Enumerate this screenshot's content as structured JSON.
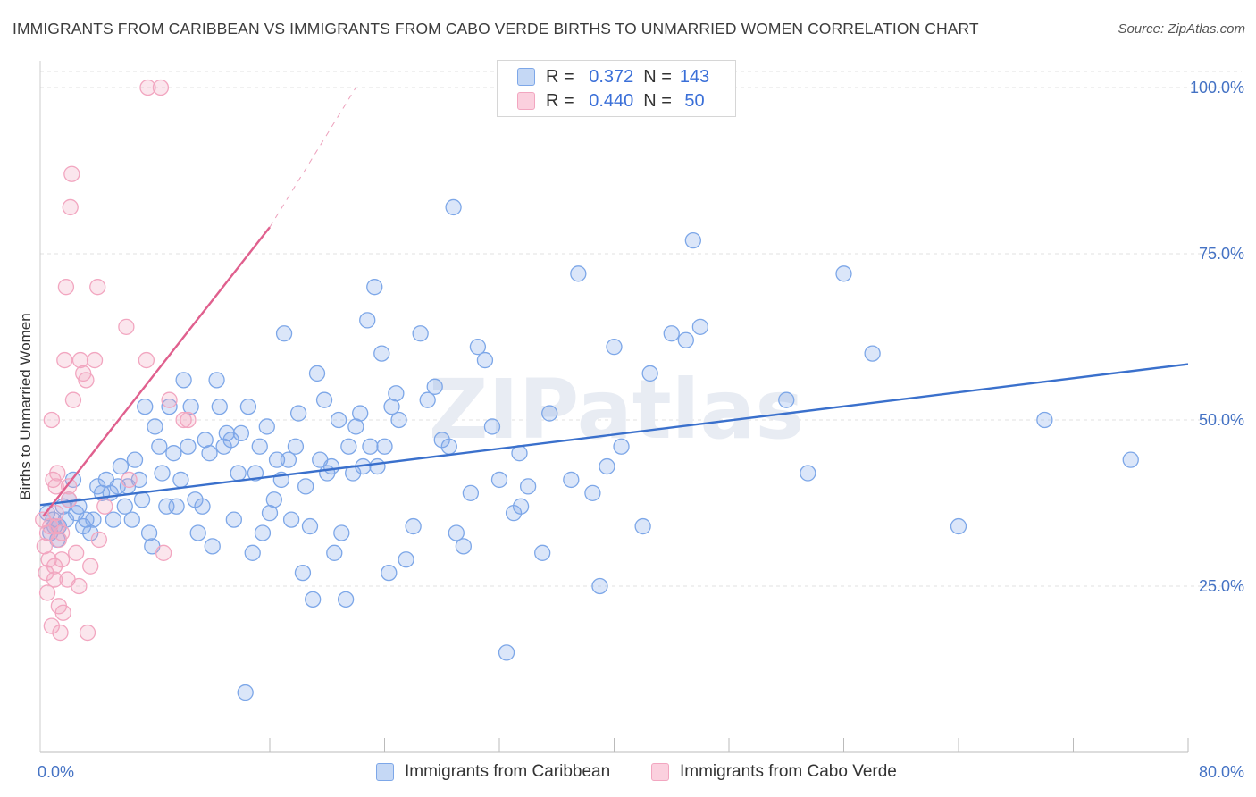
{
  "title": "IMMIGRANTS FROM CARIBBEAN VS IMMIGRANTS FROM CABO VERDE BIRTHS TO UNMARRIED WOMEN CORRELATION CHART",
  "source": "Source: ZipAtlas.com",
  "watermark": "ZIPatlas",
  "legend": {
    "rows": [
      {
        "r_label": "R =",
        "r_value": "0.372",
        "n_label": "N =",
        "n_value": "143"
      },
      {
        "r_label": "R =",
        "r_value": "0.440",
        "n_label": "N =",
        "n_value": "50"
      }
    ]
  },
  "chart_data": {
    "type": "scatter",
    "xlabel": "",
    "ylabel": "Births to Unmarried Women",
    "xlim": [
      0,
      80
    ],
    "ylim": [
      0,
      100
    ],
    "x_tick_labels": [
      "0.0%",
      "80.0%"
    ],
    "y_ticks": [
      25,
      50,
      75,
      100
    ],
    "y_tick_labels": [
      "25.0%",
      "50.0%",
      "75.0%",
      "100.0%"
    ],
    "grid": true,
    "legend_position": "bottom",
    "series": [
      {
        "name": "Immigrants from Caribbean",
        "color": "#7da7e8",
        "line_color": "#3a70cc",
        "trend": {
          "x": [
            0,
            80
          ],
          "y": [
            37.2,
            58.4
          ]
        },
        "points": [
          [
            0.5,
            36
          ],
          [
            0.7,
            33
          ],
          [
            0.9,
            35
          ],
          [
            1.0,
            34
          ],
          [
            1.2,
            32
          ],
          [
            1.3,
            34
          ],
          [
            1.6,
            37
          ],
          [
            1.8,
            35
          ],
          [
            2.0,
            38
          ],
          [
            2.3,
            41
          ],
          [
            2.5,
            36
          ],
          [
            2.7,
            37
          ],
          [
            3.0,
            34
          ],
          [
            3.2,
            35
          ],
          [
            3.5,
            33
          ],
          [
            3.7,
            35
          ],
          [
            4.0,
            40
          ],
          [
            4.3,
            39
          ],
          [
            4.6,
            41
          ],
          [
            4.9,
            39
          ],
          [
            5.1,
            35
          ],
          [
            5.4,
            40
          ],
          [
            5.6,
            43
          ],
          [
            5.9,
            37
          ],
          [
            6.1,
            40
          ],
          [
            6.4,
            35
          ],
          [
            6.6,
            44
          ],
          [
            6.9,
            41
          ],
          [
            7.1,
            38
          ],
          [
            7.3,
            52
          ],
          [
            7.6,
            33
          ],
          [
            7.8,
            31
          ],
          [
            8.0,
            49
          ],
          [
            8.3,
            46
          ],
          [
            8.5,
            42
          ],
          [
            8.8,
            37
          ],
          [
            9.0,
            52
          ],
          [
            9.3,
            45
          ],
          [
            9.5,
            37
          ],
          [
            9.8,
            41
          ],
          [
            10.0,
            56
          ],
          [
            10.3,
            46
          ],
          [
            10.5,
            52
          ],
          [
            10.8,
            38
          ],
          [
            11.0,
            33
          ],
          [
            11.3,
            37
          ],
          [
            11.5,
            47
          ],
          [
            11.8,
            45
          ],
          [
            12.0,
            31
          ],
          [
            12.3,
            56
          ],
          [
            12.5,
            52
          ],
          [
            12.8,
            46
          ],
          [
            13.0,
            48
          ],
          [
            13.3,
            47
          ],
          [
            13.5,
            35
          ],
          [
            13.8,
            42
          ],
          [
            14.0,
            48
          ],
          [
            14.3,
            9
          ],
          [
            14.5,
            52
          ],
          [
            14.8,
            30
          ],
          [
            15.0,
            42
          ],
          [
            15.3,
            46
          ],
          [
            15.5,
            33
          ],
          [
            15.8,
            49
          ],
          [
            16.0,
            36
          ],
          [
            16.3,
            38
          ],
          [
            16.5,
            44
          ],
          [
            16.8,
            41
          ],
          [
            17.0,
            63
          ],
          [
            17.3,
            44
          ],
          [
            17.5,
            35
          ],
          [
            17.8,
            46
          ],
          [
            18.0,
            51
          ],
          [
            18.3,
            27
          ],
          [
            18.5,
            40
          ],
          [
            18.8,
            34
          ],
          [
            19.0,
            23
          ],
          [
            19.3,
            57
          ],
          [
            19.5,
            44
          ],
          [
            19.8,
            53
          ],
          [
            20.0,
            42
          ],
          [
            20.3,
            43
          ],
          [
            20.5,
            30
          ],
          [
            20.8,
            50
          ],
          [
            21.0,
            33
          ],
          [
            21.3,
            23
          ],
          [
            21.5,
            46
          ],
          [
            21.8,
            42
          ],
          [
            22.0,
            49
          ],
          [
            22.3,
            51
          ],
          [
            22.5,
            43
          ],
          [
            22.8,
            65
          ],
          [
            23.0,
            46
          ],
          [
            23.3,
            70
          ],
          [
            23.5,
            43
          ],
          [
            23.8,
            60
          ],
          [
            24.0,
            46
          ],
          [
            24.3,
            27
          ],
          [
            24.5,
            52
          ],
          [
            24.8,
            54
          ],
          [
            25.0,
            50
          ],
          [
            25.5,
            29
          ],
          [
            26.0,
            34
          ],
          [
            26.5,
            63
          ],
          [
            27.0,
            53
          ],
          [
            27.5,
            55
          ],
          [
            28.0,
            47
          ],
          [
            28.5,
            46
          ],
          [
            29.0,
            33
          ],
          [
            29.5,
            31
          ],
          [
            30.0,
            39
          ],
          [
            30.5,
            61
          ],
          [
            31.0,
            59
          ],
          [
            31.5,
            49
          ],
          [
            32.0,
            41
          ],
          [
            32.5,
            15
          ],
          [
            33.0,
            36
          ],
          [
            33.5,
            37
          ],
          [
            34.0,
            40
          ],
          [
            35.0,
            30
          ],
          [
            35.5,
            51
          ],
          [
            37.0,
            41
          ],
          [
            37.5,
            72
          ],
          [
            38.5,
            39
          ],
          [
            39.0,
            25
          ],
          [
            39.5,
            43
          ],
          [
            40.0,
            61
          ],
          [
            40.5,
            46
          ],
          [
            42.0,
            34
          ],
          [
            42.5,
            57
          ],
          [
            44.0,
            63
          ],
          [
            45.0,
            62
          ],
          [
            46.0,
            64
          ],
          [
            45.5,
            77
          ],
          [
            52.0,
            53
          ],
          [
            53.5,
            42
          ],
          [
            56.0,
            72
          ],
          [
            58.0,
            60
          ],
          [
            64.0,
            34
          ],
          [
            70.0,
            50
          ],
          [
            76.0,
            44
          ],
          [
            28.8,
            82
          ],
          [
            33.4,
            45
          ]
        ]
      },
      {
        "name": "Immigrants from Cabo Verde",
        "color": "#f2a6c0",
        "line_color": "#e0608e",
        "trend": {
          "x": [
            0.2,
            16
          ],
          "y": [
            35.5,
            79
          ]
        },
        "trend_dashed": {
          "x": [
            16,
            22
          ],
          "y": [
            79,
            100
          ]
        },
        "points": [
          [
            0.2,
            35
          ],
          [
            0.3,
            31
          ],
          [
            0.4,
            27
          ],
          [
            0.5,
            33
          ],
          [
            0.5,
            24
          ],
          [
            0.6,
            29
          ],
          [
            0.7,
            34
          ],
          [
            0.8,
            19
          ],
          [
            0.8,
            50
          ],
          [
            0.9,
            41
          ],
          [
            1.0,
            28
          ],
          [
            1.0,
            26
          ],
          [
            1.1,
            36
          ],
          [
            1.1,
            40
          ],
          [
            1.2,
            42
          ],
          [
            1.2,
            34
          ],
          [
            1.3,
            32
          ],
          [
            1.3,
            22
          ],
          [
            1.4,
            18
          ],
          [
            1.5,
            33
          ],
          [
            1.5,
            29
          ],
          [
            1.6,
            21
          ],
          [
            1.7,
            59
          ],
          [
            1.8,
            70
          ],
          [
            1.9,
            26
          ],
          [
            2.0,
            38
          ],
          [
            2.0,
            40
          ],
          [
            2.1,
            82
          ],
          [
            2.2,
            87
          ],
          [
            2.3,
            53
          ],
          [
            2.5,
            30
          ],
          [
            2.7,
            25
          ],
          [
            2.8,
            59
          ],
          [
            3.0,
            57
          ],
          [
            3.2,
            56
          ],
          [
            3.3,
            18
          ],
          [
            3.5,
            28
          ],
          [
            3.8,
            59
          ],
          [
            4.0,
            70
          ],
          [
            4.1,
            32
          ],
          [
            4.5,
            37
          ],
          [
            6.0,
            64
          ],
          [
            6.2,
            41
          ],
          [
            7.4,
            59
          ],
          [
            7.5,
            100
          ],
          [
            8.4,
            100
          ],
          [
            8.6,
            30
          ],
          [
            9.0,
            53
          ],
          [
            10.0,
            50
          ],
          [
            10.3,
            50
          ]
        ]
      }
    ]
  }
}
